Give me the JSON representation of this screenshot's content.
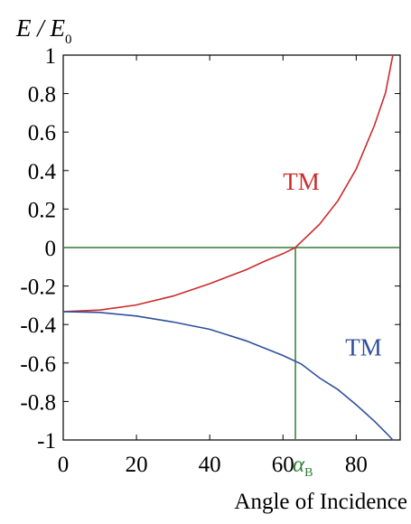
{
  "chart_data": {
    "type": "line",
    "xlabel": "Angle of Incidence",
    "ylabel": {
      "main": "E / E",
      "sub": "0"
    },
    "xlim": [
      0,
      92
    ],
    "ylim": [
      -1,
      1
    ],
    "x_ticks": [
      0,
      20,
      40,
      60,
      80
    ],
    "x_tick_labels": [
      "0",
      "20",
      "40",
      "60",
      "80"
    ],
    "y_ticks": [
      1,
      0.8,
      0.6,
      0.4,
      0.2,
      0,
      -0.2,
      -0.4,
      -0.6,
      -0.8,
      -1
    ],
    "y_tick_labels": [
      "1",
      "0.8",
      "0.6",
      "0.4",
      "0.2",
      "0",
      "-0.2",
      "-0.4",
      "-0.6",
      "-0.8",
      "-1"
    ],
    "grid": false,
    "series": [
      {
        "name": "TM",
        "color": "#cc2b2b",
        "x": [
          0,
          10,
          20,
          30,
          40,
          50,
          55,
          60,
          63.4,
          70,
          75,
          80,
          85,
          88,
          90
        ],
        "y": [
          -0.333,
          -0.325,
          -0.298,
          -0.252,
          -0.188,
          -0.115,
          -0.071,
          -0.032,
          0.0,
          0.121,
          0.243,
          0.408,
          0.636,
          0.804,
          1.0
        ]
      },
      {
        "name": "TM",
        "color": "#2f4f9e",
        "x": [
          0,
          10,
          20,
          30,
          40,
          50,
          60,
          65,
          70,
          75,
          80,
          85,
          88,
          90
        ],
        "y": [
          -0.333,
          -0.337,
          -0.356,
          -0.387,
          -0.425,
          -0.485,
          -0.561,
          -0.605,
          -0.678,
          -0.738,
          -0.817,
          -0.903,
          -0.96,
          -1.0
        ]
      }
    ],
    "reference_lines": [
      {
        "type": "hline",
        "y": 0,
        "color": "#2e7d32"
      },
      {
        "type": "vline",
        "x": 63.4,
        "color": "#2e7d32"
      }
    ],
    "annotations": [
      {
        "text": "α",
        "sub": "B",
        "x": 63.4,
        "color": "#2e7d32"
      }
    ]
  }
}
